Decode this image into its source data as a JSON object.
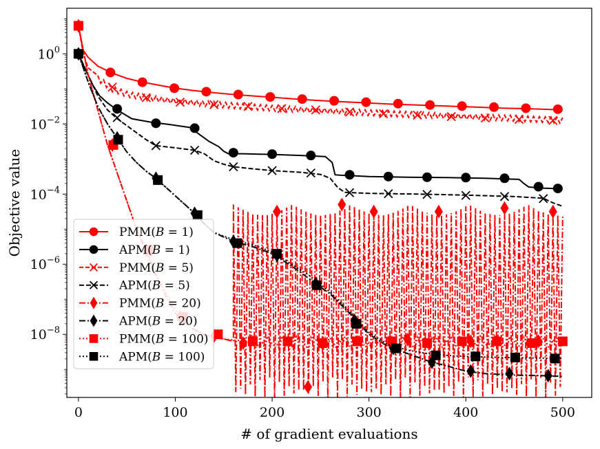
{
  "chart_data": {
    "type": "line",
    "title": "",
    "xlabel": "# of gradient evaluations",
    "ylabel": "Objective value",
    "xlim": [
      -12,
      530
    ],
    "ylim_log10": [
      -9.8,
      1.3
    ],
    "yscale": "log",
    "x_ticks": [
      0,
      100,
      200,
      300,
      400,
      500
    ],
    "x_tick_labels": [
      "0",
      "100",
      "200",
      "300",
      "400",
      "500"
    ],
    "y_ticks_log10": [
      0,
      -2,
      -4,
      -6,
      -8
    ],
    "y_tick_labels": [
      {
        "base": "10",
        "exp": "0"
      },
      {
        "base": "10",
        "exp": "−2"
      },
      {
        "base": "10",
        "exp": "−4"
      },
      {
        "base": "10",
        "exp": "−6"
      },
      {
        "base": "10",
        "exp": "−8"
      }
    ],
    "grid": false,
    "legend_position": "lower-left",
    "series": [
      {
        "name": "PMM(B = 1)",
        "label_main": "PMM(",
        "label_var": "B",
        "label_rest": " = 1)",
        "color": "#ff0000",
        "dash": "",
        "marker": "circle",
        "x": [
          0,
          5,
          10,
          20,
          35,
          50,
          65,
          80,
          100,
          120,
          140,
          160,
          180,
          200,
          230,
          260,
          290,
          320,
          350,
          380,
          410,
          440,
          470,
          500
        ],
        "log10y": [
          0.8,
          0.1,
          -0.1,
          -0.35,
          -0.55,
          -0.7,
          -0.8,
          -0.88,
          -0.98,
          -1.05,
          -1.11,
          -1.16,
          -1.2,
          -1.24,
          -1.3,
          -1.35,
          -1.39,
          -1.43,
          -1.46,
          -1.49,
          -1.52,
          -1.55,
          -1.57,
          -1.6
        ],
        "marker_x": [
          0,
          33,
          66,
          99,
          132,
          165,
          198,
          231,
          264,
          297,
          330,
          363,
          396,
          429,
          462,
          495
        ],
        "marker_log10y": [
          0.8,
          -0.53,
          -0.81,
          -0.98,
          -1.08,
          -1.16,
          -1.23,
          -1.29,
          -1.34,
          -1.38,
          -1.42,
          -1.46,
          -1.49,
          -1.52,
          -1.55,
          -1.58
        ]
      },
      {
        "name": "APM(B = 1)",
        "label_main": "APM(",
        "label_var": "B",
        "label_rest": " = 1)",
        "color": "#000000",
        "dash": "",
        "marker": "circle",
        "x": [
          0,
          8,
          15,
          22,
          30,
          40,
          55,
          75,
          95,
          115,
          125,
          135,
          145,
          150,
          155,
          170,
          200,
          230,
          255,
          262,
          265,
          270,
          300,
          340,
          380,
          420,
          455,
          460,
          465,
          480,
          500
        ],
        "log10y": [
          0,
          -0.5,
          -0.9,
          -1.2,
          -1.4,
          -1.6,
          -1.85,
          -1.95,
          -2.02,
          -2.1,
          -2.3,
          -2.5,
          -2.65,
          -2.78,
          -2.85,
          -2.85,
          -2.87,
          -2.9,
          -2.93,
          -3.1,
          -3.45,
          -3.46,
          -3.5,
          -3.52,
          -3.53,
          -3.55,
          -3.58,
          -3.7,
          -3.8,
          -3.83,
          -3.85
        ],
        "marker_x": [
          0,
          40,
          80,
          120,
          160,
          200,
          240,
          280,
          320,
          360,
          400,
          440,
          475,
          495
        ],
        "marker_log10y": [
          0,
          -1.57,
          -1.98,
          -2.12,
          -2.82,
          -2.86,
          -2.9,
          -3.45,
          -3.5,
          -3.52,
          -3.53,
          -3.55,
          -3.79,
          -3.84
        ]
      },
      {
        "name": "PMM(B = 5)",
        "label_main": "PMM(",
        "label_var": "B",
        "label_rest": " = 5)",
        "color": "#ff0000",
        "dash": "6 3",
        "marker": "x",
        "oscillate_amp": 0.08,
        "x": [
          0,
          5,
          10,
          20,
          35,
          50,
          70,
          100,
          130,
          160,
          200,
          250,
          300,
          350,
          400,
          450,
          500
        ],
        "log10y": [
          0.8,
          0.0,
          -0.4,
          -0.7,
          -1.0,
          -1.15,
          -1.25,
          -1.35,
          -1.42,
          -1.48,
          -1.55,
          -1.62,
          -1.68,
          -1.74,
          -1.79,
          -1.84,
          -1.9
        ],
        "marker_x": [
          0,
          35,
          70,
          105,
          140,
          175,
          210,
          245,
          280,
          315,
          350,
          385,
          420,
          455,
          490
        ],
        "marker_log10y": [
          0.8,
          -0.95,
          -1.25,
          -1.38,
          -1.45,
          -1.5,
          -1.56,
          -1.6,
          -1.66,
          -1.71,
          -1.75,
          -1.79,
          -1.83,
          -1.87,
          -1.9
        ]
      },
      {
        "name": "APM(B = 5)",
        "label_main": "APM(",
        "label_var": "B",
        "label_rest": " = 5)",
        "color": "#000000",
        "dash": "7 3",
        "marker": "x",
        "x": [
          0,
          10,
          20,
          30,
          40,
          50,
          60,
          70,
          80,
          100,
          120,
          130,
          140,
          150,
          160,
          180,
          200,
          230,
          250,
          260,
          268,
          275,
          300,
          350,
          400,
          450,
          480,
          490,
          500
        ],
        "log10y": [
          0,
          -0.6,
          -1.2,
          -1.6,
          -1.85,
          -2.05,
          -2.25,
          -2.45,
          -2.62,
          -2.68,
          -2.75,
          -2.85,
          -3.05,
          -3.15,
          -3.22,
          -3.28,
          -3.33,
          -3.38,
          -3.44,
          -3.55,
          -3.82,
          -3.95,
          -3.98,
          -4.0,
          -4.03,
          -4.07,
          -4.12,
          -4.25,
          -4.35
        ],
        "marker_x": [
          0,
          40,
          80,
          120,
          160,
          200,
          240,
          280,
          320,
          360,
          400,
          440,
          480
        ],
        "marker_log10y": [
          0,
          -1.82,
          -2.62,
          -2.75,
          -3.22,
          -3.33,
          -3.4,
          -3.96,
          -3.99,
          -4.01,
          -4.04,
          -4.07,
          -4.13
        ]
      },
      {
        "name": "PMM(B = 20)",
        "label_main": "PMM(",
        "label_var": "B",
        "label_rest": " = 20)",
        "color": "#ff0000",
        "dash": "9 3 2 3",
        "marker": "diamond",
        "osc_start": 160,
        "osc_top_log10": -4.3,
        "osc_bottom_log10": -9.2,
        "x": [
          0,
          5,
          10,
          20,
          30,
          40,
          50,
          60,
          70,
          80,
          90,
          100,
          115,
          130,
          145,
          160
        ],
        "log10y": [
          0.8,
          0.1,
          -0.6,
          -1.6,
          -2.6,
          -3.4,
          -4.2,
          -5.0,
          -5.6,
          -6.3,
          -6.9,
          -7.4,
          -7.8,
          -8.0,
          -8.1,
          -8.2
        ],
        "marker_x": [
          0,
          35,
          70,
          105,
          140,
          170,
          205,
          237,
          272,
          305,
          340,
          372,
          405,
          440,
          475,
          490
        ],
        "marker_log10y": [
          0.8,
          -2.6,
          -5.6,
          -7.5,
          -8.05,
          -8.25,
          -4.5,
          -9.5,
          -4.3,
          -4.5,
          -8.15,
          -4.5,
          -8.2,
          -4.4,
          -8.2,
          -4.5
        ]
      },
      {
        "name": "APM(B = 20)",
        "label_main": "APM(",
        "label_var": "B",
        "label_rest": " = 20)",
        "color": "#000000",
        "dash": "9 3 2 3",
        "marker": "diamond",
        "x": [
          0,
          10,
          20,
          30,
          40,
          50,
          60,
          70,
          80,
          90,
          100,
          110,
          120,
          130,
          140,
          160,
          180,
          200,
          220,
          240,
          260,
          280,
          300,
          320,
          340,
          360,
          380,
          400,
          420,
          440,
          460,
          480,
          500
        ],
        "log10y": [
          0,
          -0.8,
          -1.5,
          -2.0,
          -2.4,
          -2.8,
          -3.1,
          -3.35,
          -3.55,
          -3.8,
          -4.05,
          -4.3,
          -4.55,
          -4.85,
          -5.1,
          -5.35,
          -5.5,
          -5.7,
          -6.05,
          -6.45,
          -6.85,
          -7.4,
          -8.0,
          -8.35,
          -8.55,
          -8.75,
          -8.9,
          -9.05,
          -9.12,
          -9.15,
          -9.17,
          -9.18,
          -9.2
        ],
        "marker_x": [
          0,
          40,
          80,
          120,
          160,
          205,
          245,
          285,
          325,
          365,
          405,
          445,
          485
        ],
        "marker_log10y": [
          0,
          -2.4,
          -3.55,
          -4.55,
          -5.35,
          -5.75,
          -6.55,
          -7.6,
          -8.4,
          -8.8,
          -9.05,
          -9.12,
          -9.18
        ]
      },
      {
        "name": "PMM(B = 100)",
        "label_main": "PMM(",
        "label_var": "B",
        "label_rest": " = 100)",
        "color": "#ff0000",
        "dash": "2 3",
        "marker": "square",
        "osc_start": 175,
        "x": [
          0,
          5,
          10,
          20,
          30,
          40,
          50,
          60,
          70,
          80,
          90,
          100,
          115,
          130,
          145,
          160,
          175
        ],
        "log10y": [
          0.8,
          0.1,
          -0.6,
          -1.6,
          -2.6,
          -3.4,
          -4.2,
          -5.0,
          -5.7,
          -6.3,
          -6.8,
          -7.3,
          -7.8,
          -8.05,
          -8.12,
          -8.16,
          -8.2
        ],
        "marker_x": [
          0,
          36,
          72,
          108,
          144,
          180,
          216,
          252,
          288,
          324,
          360,
          396,
          432,
          468,
          500
        ],
        "marker_log10y": [
          0.8,
          -2.6,
          -5.6,
          -7.5,
          -8.0,
          -8.2,
          -8.2,
          -8.25,
          -8.2,
          -8.2,
          -8.25,
          -8.2,
          -8.2,
          -8.25,
          -8.2
        ]
      },
      {
        "name": "APM(B = 100)",
        "label_main": "APM(",
        "label_var": "B",
        "label_rest": " = 100)",
        "color": "#000000",
        "dash": "2 3",
        "marker": "square",
        "x": [
          0,
          10,
          20,
          30,
          40,
          50,
          60,
          70,
          80,
          90,
          100,
          110,
          120,
          130,
          140,
          160,
          180,
          200,
          220,
          240,
          260,
          280,
          300,
          320,
          340,
          360,
          380,
          400,
          420,
          440,
          460,
          480,
          500
        ],
        "log10y": [
          0,
          -0.8,
          -1.5,
          -2.0,
          -2.4,
          -2.8,
          -3.1,
          -3.35,
          -3.55,
          -3.8,
          -4.05,
          -4.3,
          -4.55,
          -4.85,
          -5.1,
          -5.3,
          -5.45,
          -5.65,
          -6.0,
          -6.35,
          -6.8,
          -7.35,
          -7.95,
          -8.3,
          -8.45,
          -8.55,
          -8.6,
          -8.63,
          -8.65,
          -8.66,
          -8.67,
          -8.68,
          -8.7
        ],
        "marker_x": [
          0,
          41,
          82,
          123,
          164,
          205,
          246,
          287,
          328,
          369,
          410,
          451,
          492
        ],
        "marker_log10y": [
          0,
          -2.45,
          -3.6,
          -4.6,
          -5.4,
          -5.7,
          -6.6,
          -7.7,
          -8.4,
          -8.6,
          -8.63,
          -8.66,
          -8.69
        ]
      }
    ]
  }
}
